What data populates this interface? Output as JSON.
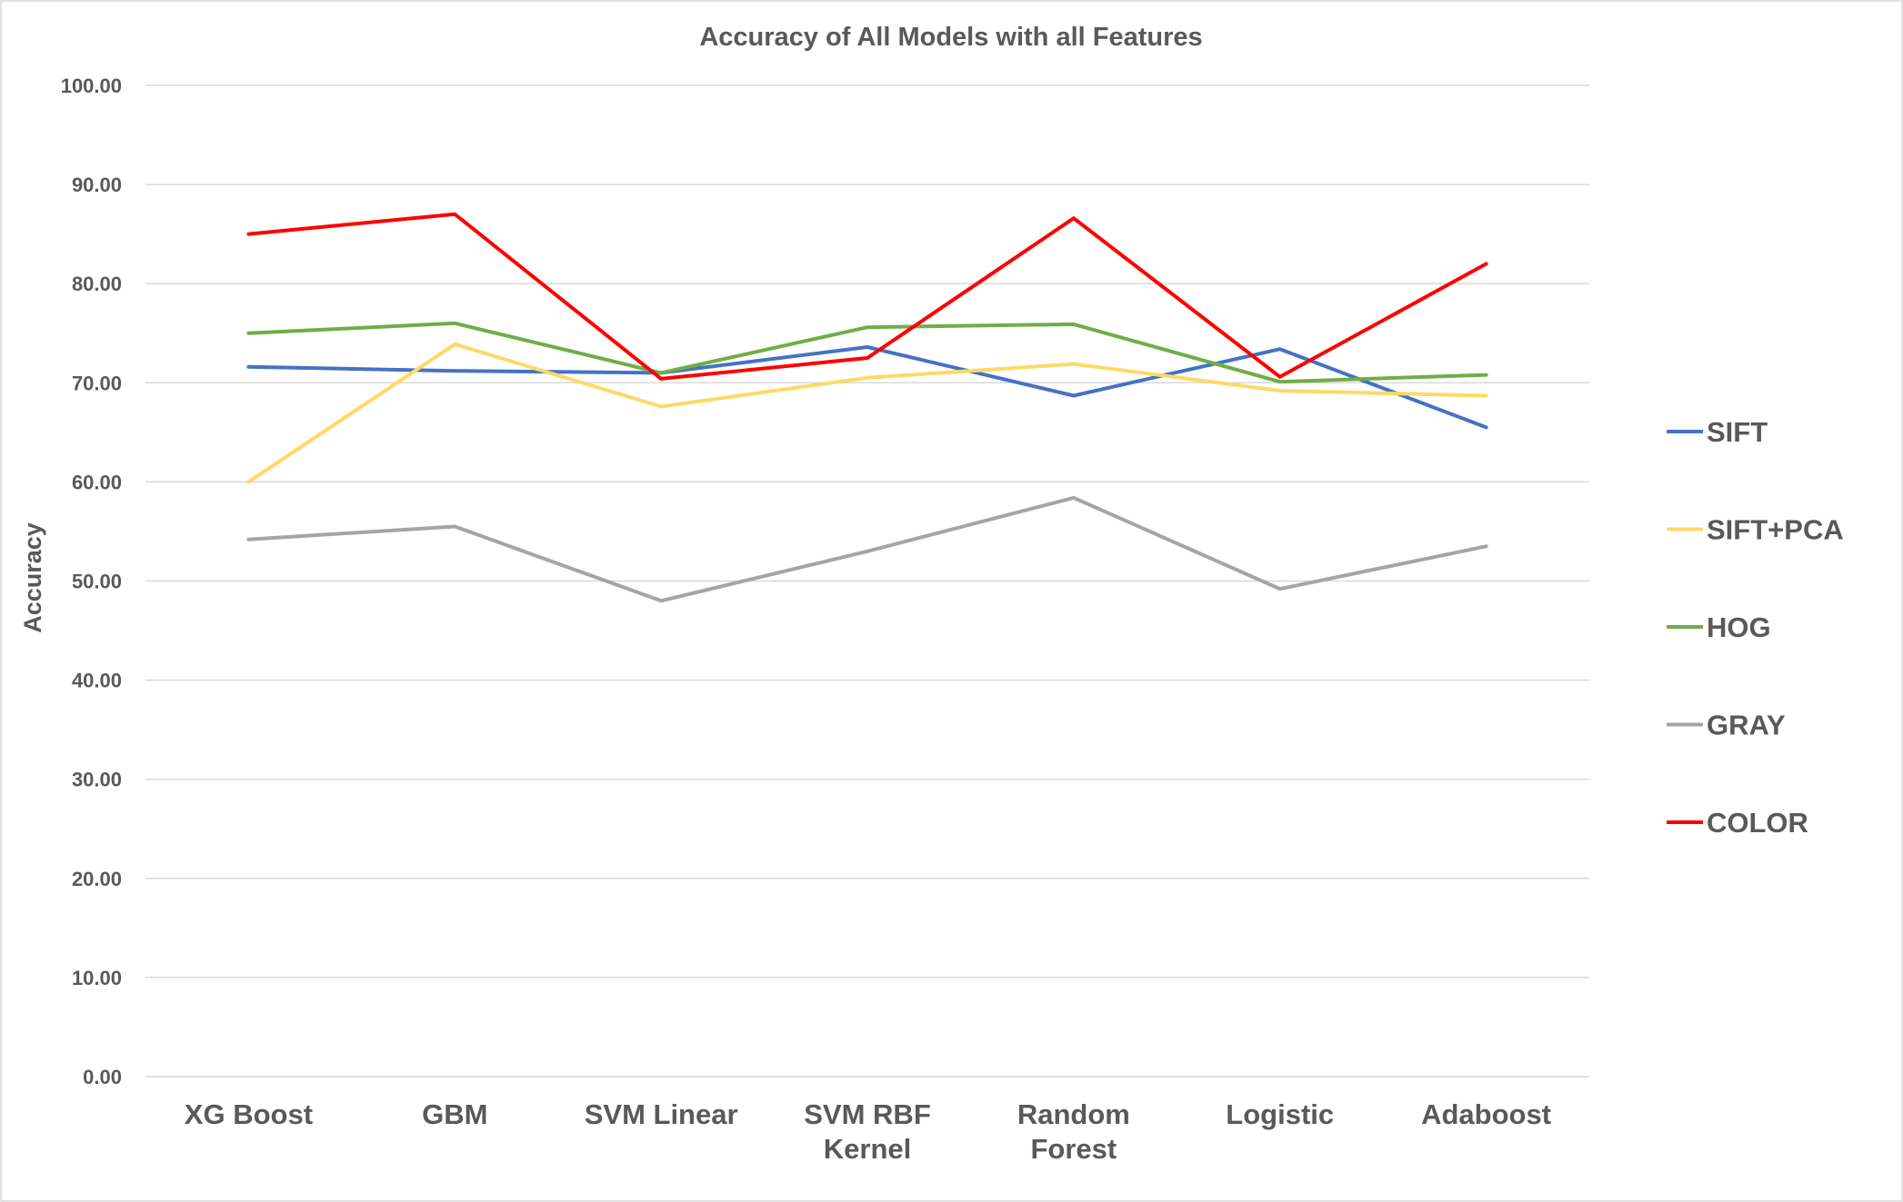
{
  "chart_data": {
    "type": "line",
    "title": "Accuracy of All Models with all Features",
    "xlabel": "",
    "ylabel": "Accuracy",
    "ylim": [
      0,
      100
    ],
    "yticks": [
      "0.00",
      "10.00",
      "20.00",
      "30.00",
      "40.00",
      "50.00",
      "60.00",
      "70.00",
      "80.00",
      "90.00",
      "100.00"
    ],
    "categories": [
      [
        "XG Boost"
      ],
      [
        "GBM"
      ],
      [
        "SVM Linear"
      ],
      [
        "SVM RBF",
        "Kernel"
      ],
      [
        "Random",
        "Forest"
      ],
      [
        "Logistic"
      ],
      [
        "Adaboost"
      ]
    ],
    "grid": true,
    "legend_position": "right",
    "series": [
      {
        "name": "SIFT",
        "color": "#4472C4",
        "values": [
          71.6,
          71.2,
          71.0,
          73.6,
          68.7,
          73.4,
          65.5
        ]
      },
      {
        "name": "SIFT+PCA",
        "color": "#FFD966",
        "values": [
          60.0,
          73.9,
          67.6,
          70.5,
          71.9,
          69.2,
          68.7
        ]
      },
      {
        "name": "HOG",
        "color": "#70AD47",
        "values": [
          75.0,
          76.0,
          71.0,
          75.6,
          75.9,
          70.1,
          70.8
        ]
      },
      {
        "name": "GRAY",
        "color": "#A5A5A5",
        "values": [
          54.2,
          55.5,
          48.0,
          53.0,
          58.4,
          49.2,
          53.5
        ]
      },
      {
        "name": "COLOR",
        "color": "#FF0000",
        "values": [
          85.0,
          87.0,
          70.4,
          72.5,
          86.6,
          70.6,
          82.0
        ]
      }
    ]
  }
}
